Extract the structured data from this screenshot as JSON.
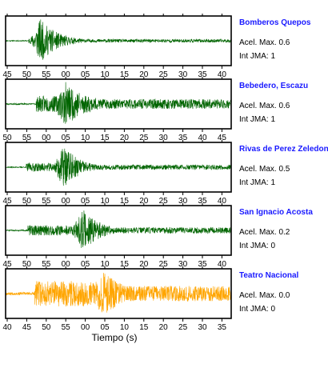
{
  "chart_data": {
    "type": "line",
    "xlabel": "Tiempo (s)",
    "panels": [
      {
        "station": "Bomberos Quepos",
        "accel_label": "Acel. Max. 0.6",
        "jma_label": "Int JMA: 1",
        "color": "#006400",
        "tick_labels": [
          "45",
          "50",
          "55",
          "00",
          "05",
          "10",
          "15",
          "20",
          "25",
          "30",
          "35",
          "40"
        ],
        "onset": 5.5,
        "peak": 8.5,
        "pre_amp": 0.02,
        "post_amp": 0.12,
        "peak_amp": 0.95,
        "decay": 4.5,
        "seed": 11
      },
      {
        "station": "Bebedero, Escazu",
        "accel_label": "Acel. Max. 0.6",
        "jma_label": "Int JMA: 1",
        "color": "#006400",
        "tick_labels": [
          "50",
          "55",
          "00",
          "05",
          "10",
          "15",
          "20",
          "25",
          "30",
          "35",
          "40",
          "45"
        ],
        "onset": 7.4,
        "peak": 15.0,
        "pre_amp": 0.03,
        "post_amp": 0.35,
        "peak_amp": 0.95,
        "decay": 6.0,
        "seed": 23
      },
      {
        "station": "Rivas de Perez Zeledon",
        "accel_label": "Acel. Max. 0.5",
        "jma_label": "Int JMA: 1",
        "color": "#006400",
        "tick_labels": [
          "45",
          "50",
          "55",
          "00",
          "05",
          "10",
          "15",
          "20",
          "25",
          "30",
          "35",
          "40"
        ],
        "onset": 4.8,
        "peak": 14.6,
        "pre_amp": 0.02,
        "post_amp": 0.18,
        "peak_amp": 0.95,
        "decay": 4.0,
        "seed": 37
      },
      {
        "station": "San Ignacio Acosta",
        "accel_label": "Acel. Max. 0.2",
        "jma_label": "Int JMA: 0",
        "color": "#006400",
        "tick_labels": [
          "45",
          "50",
          "55",
          "00",
          "05",
          "10",
          "15",
          "20",
          "25",
          "30",
          "35",
          "40"
        ],
        "onset": 5.2,
        "peak": 19.5,
        "pre_amp": 0.03,
        "post_amp": 0.22,
        "peak_amp": 0.9,
        "decay": 4.5,
        "seed": 51
      },
      {
        "station": "Teatro Nacional",
        "accel_label": "Acel. Max. 0.0",
        "jma_label": "Int JMA: 0",
        "color": "#FFA500",
        "tick_labels": [
          "40",
          "45",
          "50",
          "55",
          "00",
          "05",
          "10",
          "15",
          "20",
          "25",
          "30",
          "35"
        ],
        "onset": 7.0,
        "peak": 25.0,
        "pre_amp": 0.06,
        "post_amp": 0.55,
        "peak_amp": 0.95,
        "decay": 5.5,
        "seed": 67
      }
    ]
  }
}
